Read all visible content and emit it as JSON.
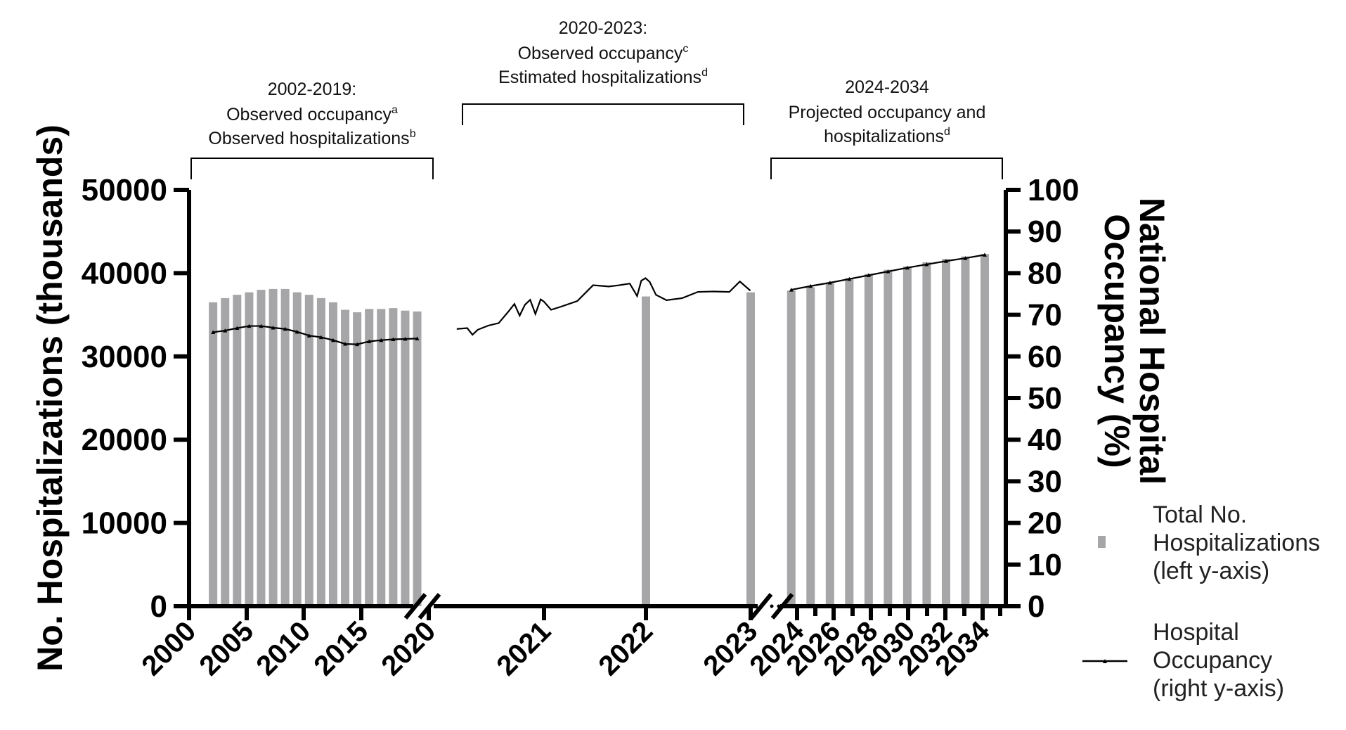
{
  "chart_data": {
    "type": "bar",
    "y_left": {
      "label": "No. Hospitalizations  (thousands)",
      "range": [
        0,
        50000
      ],
      "ticks": [
        "0",
        "10000",
        "20000",
        "30000",
        "40000",
        "50000"
      ]
    },
    "y_right": {
      "label_line1": "National Hospital",
      "label_line2": "Occupancy  (%)",
      "range": [
        0,
        100
      ],
      "ticks": [
        "0",
        "10",
        "20",
        "30",
        "40",
        "50",
        "60",
        "70",
        "80",
        "90",
        "100"
      ]
    },
    "x_ticks": [
      "2000",
      "2005",
      "2010",
      "2015",
      "2020",
      "2021",
      "2022",
      "2023",
      "2024",
      "2026",
      "2028",
      "2030",
      "2032",
      "2034"
    ],
    "periods": [
      {
        "title": "2002-2019:",
        "line1": "Observed occupancy",
        "sup1": "a",
        "line2": "Observed hospitalizations",
        "sup2": "b"
      },
      {
        "title": "2020-2023:",
        "line1": "Observed occupancy",
        "sup1": "c",
        "line2": "Estimated  hospitalizations",
        "sup2": "d"
      },
      {
        "title": "2024-2034",
        "line1": "Projected occupancy and",
        "sup1": "",
        "line2": "hospitalizations",
        "sup2": "d"
      }
    ],
    "legend": [
      {
        "line1": "Total No.",
        "line2": "Hospitalizations",
        "line3": "(left y-axis)"
      },
      {
        "line1": "Hospital",
        "line2": "Occupancy",
        "line3": "(right y-axis)"
      }
    ],
    "colors": {
      "bar": "#a6a6a8",
      "line": "#000000",
      "axis": "#000000"
    },
    "series_hospitalizations_2002_2019": {
      "x": [
        2002,
        2003,
        2004,
        2005,
        2006,
        2007,
        2008,
        2009,
        2010,
        2011,
        2012,
        2013,
        2014,
        2015,
        2016,
        2017,
        2018,
        2019
      ],
      "values": [
        36500,
        37000,
        37400,
        37700,
        38000,
        38100,
        38100,
        37700,
        37400,
        37000,
        36500,
        35600,
        35300,
        35700,
        35700,
        35800,
        35500,
        35400
      ]
    },
    "series_occupancy_2002_2019": {
      "x": [
        2002,
        2003,
        2004,
        2005,
        2006,
        2007,
        2008,
        2009,
        2010,
        2011,
        2012,
        2013,
        2014,
        2015,
        2016,
        2017,
        2018,
        2019
      ],
      "values": [
        65.8,
        66.2,
        66.8,
        67.3,
        67.3,
        66.9,
        66.6,
        65.9,
        65.0,
        64.6,
        63.9,
        63.0,
        62.9,
        63.6,
        63.9,
        64.1,
        64.2,
        64.3
      ]
    },
    "series_hospitalizations_2020_2023": {
      "x": [
        "2022",
        "2023"
      ],
      "values": [
        37200,
        37700
      ]
    },
    "series_occupancy_2020_2023": {
      "x": [
        2020.2,
        2020.3,
        2020.35,
        2020.4,
        2020.5,
        2020.6,
        2020.7,
        2020.75,
        2020.8,
        2020.85,
        2020.9,
        2020.95,
        2021.0,
        2021.03,
        2021.1,
        2021.2,
        2021.35,
        2021.5,
        2021.65,
        2021.75,
        2021.85,
        2021.92,
        2021.96,
        2022.0,
        2022.04,
        2022.1,
        2022.2,
        2022.35,
        2022.5,
        2022.65,
        2022.8,
        2022.9,
        2023.0
      ],
      "values": [
        66.6,
        66.8,
        65.2,
        66.4,
        67.4,
        68.0,
        71.0,
        72.6,
        69.8,
        72.4,
        73.6,
        70.2,
        73.7,
        73.2,
        71.2,
        72.0,
        73.3,
        77.1,
        76.8,
        77.1,
        77.5,
        74.5,
        78.2,
        78.8,
        77.9,
        74.8,
        73.5,
        74.0,
        75.5,
        75.6,
        75.5,
        78.0,
        75.8
      ]
    },
    "series_hospitalizations_2024_2034": {
      "x": [
        2024,
        2025,
        2026,
        2027,
        2028,
        2029,
        2030,
        2031,
        2032,
        2033,
        2034
      ],
      "values": [
        37900,
        38300,
        38800,
        39400,
        39900,
        40400,
        40800,
        41300,
        41700,
        42000,
        42300
      ]
    },
    "series_occupancy_2024_2034": {
      "x": [
        2024,
        2025,
        2026,
        2027,
        2028,
        2029,
        2030,
        2031,
        2032,
        2033,
        2034
      ],
      "values": [
        76.0,
        76.9,
        77.7,
        78.6,
        79.5,
        80.4,
        81.3,
        82.1,
        82.9,
        83.6,
        84.4
      ]
    }
  }
}
